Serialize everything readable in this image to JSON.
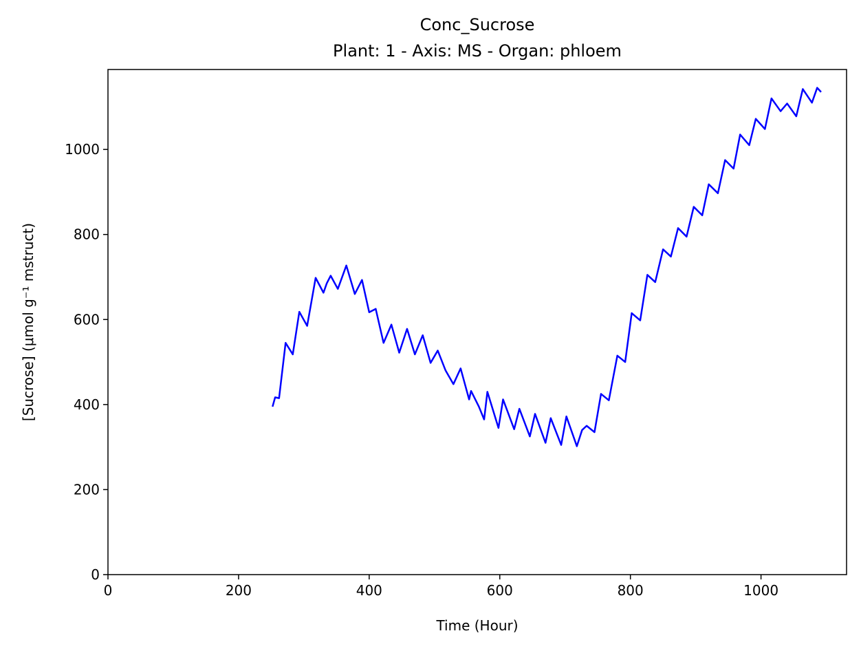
{
  "chart_data": {
    "type": "line",
    "title": "Conc_Sucrose",
    "subtitle": "Plant: 1 - Axis: MS - Organ: phloem",
    "x_label": "Time (Hour)",
    "y_label": "[Sucrose] (μmol g⁻¹ mstruct)",
    "xlim": [
      0,
      1131
    ],
    "ylim": [
      0,
      1188
    ],
    "xticks": [
      0,
      200,
      400,
      600,
      800,
      1000
    ],
    "yticks": [
      0,
      200,
      400,
      600,
      800,
      1000
    ],
    "grid": false,
    "x": [
      252,
      256,
      262,
      272,
      283,
      293,
      305,
      318,
      330,
      335,
      341,
      352,
      365,
      378,
      389,
      400,
      410,
      422,
      434,
      446,
      458,
      470,
      482,
      494,
      505,
      517,
      529,
      540,
      553,
      556,
      568,
      576,
      581,
      598,
      605,
      622,
      630,
      646,
      654,
      670,
      678,
      694,
      702,
      718,
      726,
      733,
      745,
      755,
      767,
      780,
      792,
      802,
      815,
      826,
      838,
      850,
      862,
      873,
      886,
      897,
      910,
      920,
      934,
      945,
      958,
      968,
      982,
      992,
      1006,
      1016,
      1030,
      1040,
      1054,
      1064,
      1078,
      1086,
      1092
    ],
    "series": [
      {
        "name": "Conc_Sucrose",
        "color": "#0000ff",
        "values": [
          395,
          417,
          415,
          545,
          518,
          618,
          585,
          698,
          663,
          685,
          703,
          672,
          727,
          660,
          693,
          617,
          625,
          545,
          588,
          522,
          578,
          518,
          563,
          498,
          527,
          480,
          448,
          485,
          412,
          432,
          395,
          365,
          430,
          345,
          412,
          342,
          390,
          325,
          378,
          310,
          368,
          305,
          372,
          302,
          340,
          350,
          335,
          425,
          410,
          515,
          500,
          615,
          598,
          705,
          688,
          765,
          748,
          815,
          795,
          865,
          845,
          918,
          897,
          975,
          955,
          1035,
          1010,
          1072,
          1048,
          1120,
          1090,
          1108,
          1078,
          1142,
          1110,
          1145,
          1135
        ]
      }
    ]
  }
}
